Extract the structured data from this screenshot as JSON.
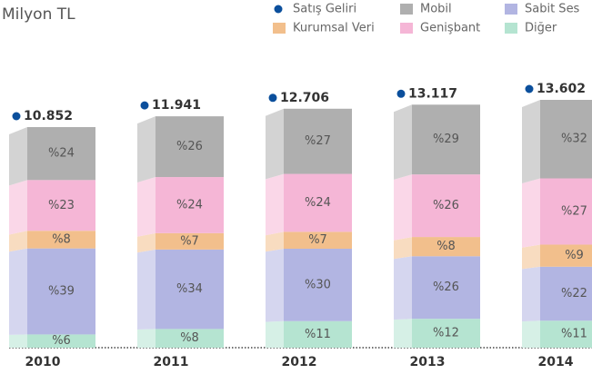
{
  "chart_data": {
    "type": "stacked_bar",
    "title": "Milyon TL",
    "categories": [
      "2010",
      "2011",
      "2012",
      "2013",
      "2014"
    ],
    "totals": {
      "name": "Satış Geliri",
      "color": "#0b4f9c",
      "values": [
        10852,
        11941,
        12706,
        13117,
        13602
      ],
      "value_labels": [
        "10.852",
        "11.941",
        "12.706",
        "13.117",
        "13.602"
      ]
    },
    "series": [
      {
        "name": "Diğer",
        "color": "#b5e4d1",
        "values": [
          6,
          8,
          11,
          12,
          11
        ],
        "value_labels": [
          "%6",
          "%8",
          "%11",
          "%12",
          "%11"
        ]
      },
      {
        "name": "Sabit Ses",
        "color": "#b2b5e2",
        "values": [
          39,
          34,
          30,
          26,
          22
        ],
        "value_labels": [
          "%39",
          "%34",
          "%30",
          "%26",
          "%22"
        ]
      },
      {
        "name": "Kurumsal Veri",
        "color": "#f2bf8c",
        "values": [
          8,
          7,
          7,
          8,
          9
        ],
        "value_labels": [
          "%8",
          "%7",
          "%7",
          "%8",
          "%9"
        ]
      },
      {
        "name": "Genişbant",
        "color": "#f5b6d6",
        "values": [
          23,
          24,
          24,
          26,
          27
        ],
        "value_labels": [
          "%23",
          "%24",
          "%24",
          "%26",
          "%27"
        ]
      },
      {
        "name": "Mobil",
        "color": "#afafaf",
        "values": [
          24,
          26,
          27,
          29,
          32
        ],
        "value_labels": [
          "%24",
          "%26",
          "%27",
          "%29",
          "%32"
        ]
      }
    ]
  }
}
